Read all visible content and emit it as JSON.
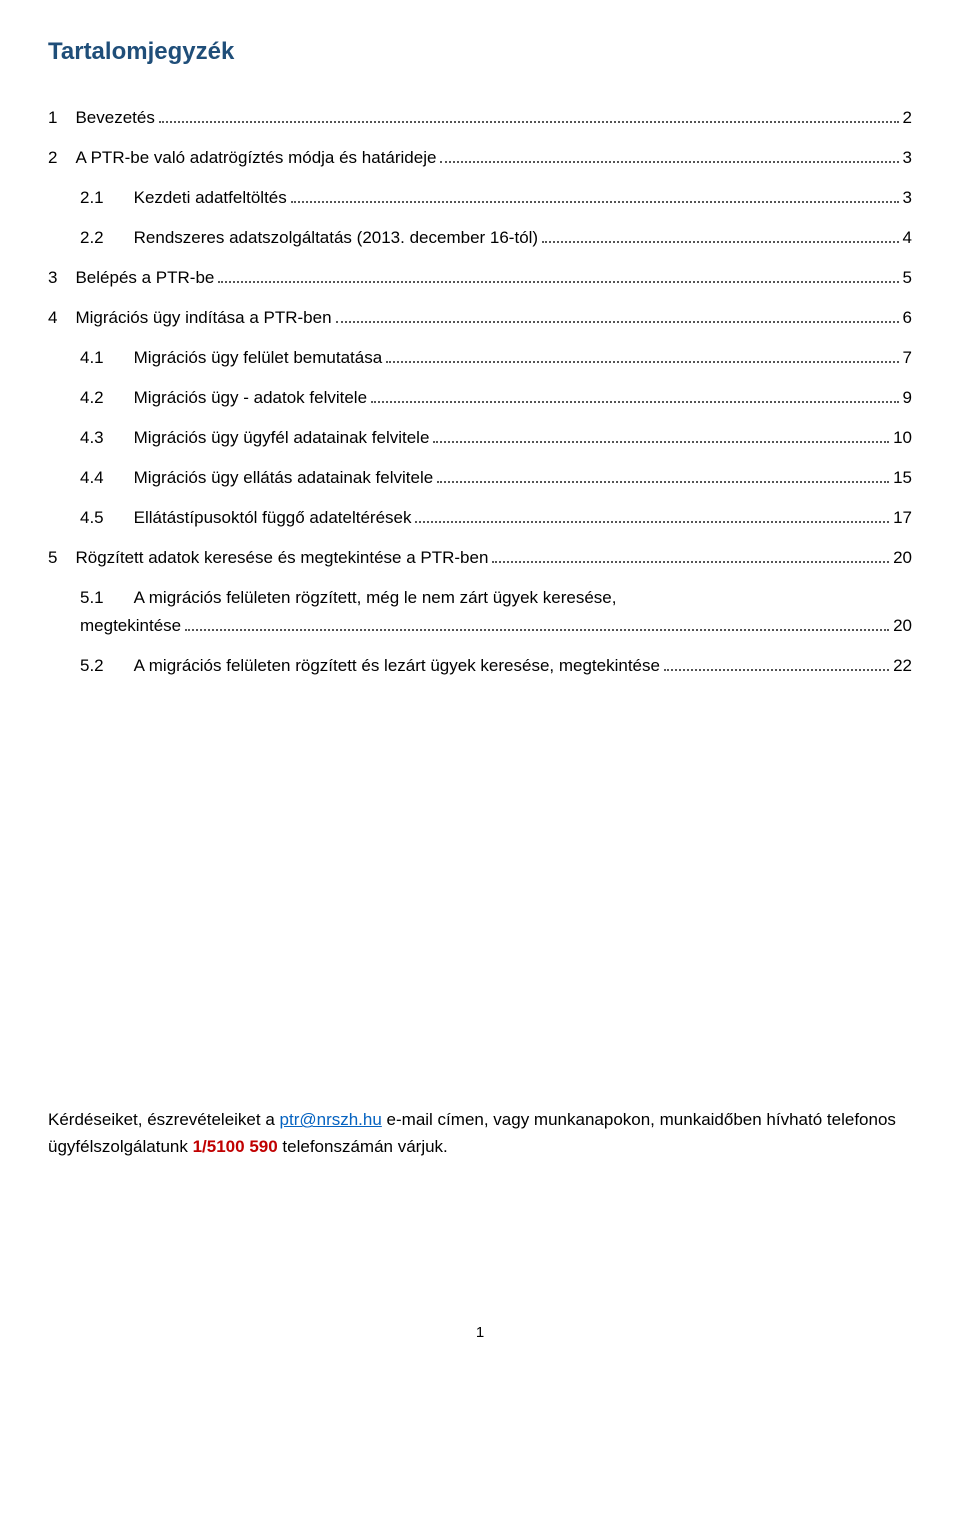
{
  "title": "Tartalomjegyzék",
  "colors": {
    "heading": "#1f4e79",
    "text": "#000000",
    "link": "#0563c1",
    "phone": "#c00000",
    "background": "#ffffff",
    "dots": "#555555"
  },
  "typography": {
    "body_fontsize_pt": 12,
    "heading_fontsize_pt": 18,
    "font_family": "Verdana"
  },
  "toc": {
    "entries": [
      {
        "num": "1",
        "title": "Bevezetés",
        "page": "2",
        "indent": 0
      },
      {
        "num": "2",
        "title": "A PTR-be való adatrögíztés módja és határideje",
        "page": "3",
        "indent": 0
      },
      {
        "num": "2.1",
        "title": "Kezdeti adatfeltöltés",
        "page": "3",
        "indent": 1
      },
      {
        "num": "2.2",
        "title": "Rendszeres adatszolgáltatás (2013. december 16-tól)",
        "page": "4",
        "indent": 1
      },
      {
        "num": "3",
        "title": "Belépés a PTR-be",
        "page": "5",
        "indent": 0
      },
      {
        "num": "4",
        "title": "Migrációs ügy indítása a PTR-ben",
        "page": "6",
        "indent": 0
      },
      {
        "num": "4.1",
        "title": "Migrációs ügy felület bemutatása",
        "page": "7",
        "indent": 1
      },
      {
        "num": "4.2",
        "title": "Migrációs ügy - adatok felvitele",
        "page": "9",
        "indent": 1
      },
      {
        "num": "4.3",
        "title": "Migrációs ügy ügyfél adatainak felvitele",
        "page": "10",
        "indent": 1
      },
      {
        "num": "4.4",
        "title": "Migrációs ügy ellátás adatainak felvitele",
        "page": "15",
        "indent": 1
      },
      {
        "num": "4.5",
        "title": "Ellátástípusoktól függő adateltérések",
        "page": "17",
        "indent": 1
      },
      {
        "num": "5",
        "title": "Rögzített adatok keresése és megtekintése a PTR-ben",
        "page": "20",
        "indent": 0
      },
      {
        "num": "5.1",
        "title": "A migrációs felületen rögzített, még le nem zárt ügyek keresése,",
        "title2": "megtekintése",
        "page": "20",
        "indent": 1,
        "wrap": true
      },
      {
        "num": "5.2",
        "title": "A migrációs felületen rögzített és lezárt ügyek keresése, megtekintése",
        "page": "22",
        "indent": 1
      }
    ]
  },
  "contact": {
    "prefix": "Kérdéseiket, észrevételeiket a ",
    "email": "ptr@nrszh.hu",
    "mid": " e-mail címen, vagy munkanapokon, munkaidőben hívható telefonos ügyfélszolgálatunk ",
    "phone": "1/5100 590",
    "suffix": " telefonszámán várjuk."
  },
  "page_number": "1"
}
